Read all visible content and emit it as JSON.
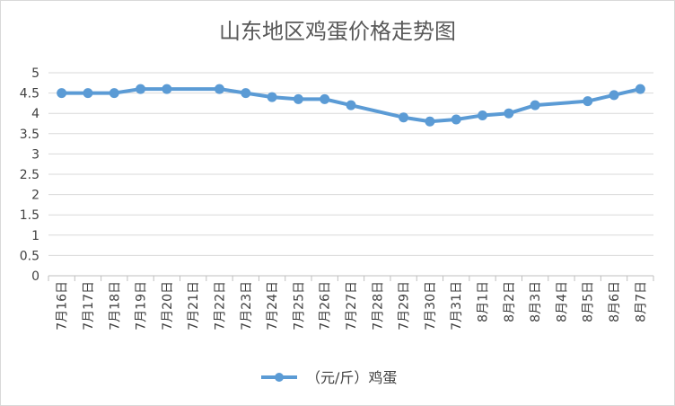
{
  "chart_data": {
    "type": "line",
    "title": "山东地区鸡蛋价格走势图",
    "categories": [
      "7月16日",
      "7月17日",
      "7月18日",
      "7月19日",
      "7月20日",
      "7月21日",
      "7月22日",
      "7月23日",
      "7月24日",
      "7月25日",
      "7月26日",
      "7月27日",
      "7月28日",
      "7月29日",
      "7月30日",
      "7月31日",
      "8月1日",
      "8月2日",
      "8月3日",
      "8月4日",
      "8月5日",
      "8月6日",
      "8月7日"
    ],
    "series": [
      {
        "name": "（元/斤）鸡蛋",
        "values": [
          4.5,
          4.5,
          4.5,
          4.6,
          4.6,
          null,
          4.6,
          4.5,
          4.4,
          4.35,
          4.35,
          4.2,
          null,
          3.9,
          3.8,
          3.85,
          3.95,
          4.0,
          4.2,
          null,
          4.3,
          4.45,
          4.6
        ]
      }
    ],
    "yticks": [
      "0",
      "0.5",
      "1",
      "1.5",
      "2",
      "2.5",
      "3",
      "3.5",
      "4",
      "4.5",
      "5"
    ],
    "ylim": [
      0,
      5
    ],
    "grid": true,
    "legend": "bottom",
    "colors": {
      "series": "#5B9BD5",
      "grid": "#d9d9d9",
      "axis": "#bfbfbf",
      "text": "#404040",
      "title": "#595959"
    }
  }
}
